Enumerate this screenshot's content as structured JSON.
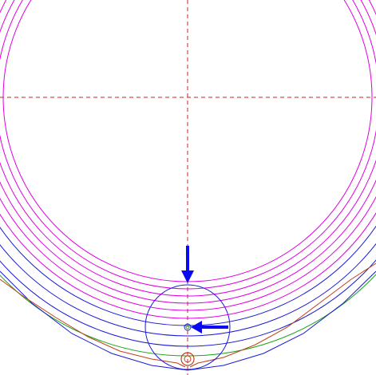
{
  "diagram": {
    "colors": {
      "background": "#ffffff",
      "construction_line": "#cc2222",
      "magenta_contour": "#e100e1",
      "blue_contour": "#1a1ad6",
      "green_contour": "#1aa51a",
      "orange_profile": "#c0401a",
      "arrow": "#0a0af0"
    },
    "magenta_circle_count": 6,
    "blue_circle_count": 3,
    "green_circle_count": 1,
    "markers": [
      "down-arrow-marker",
      "left-arrow-marker",
      "small-circle-marker",
      "orange-circle-marker"
    ]
  }
}
